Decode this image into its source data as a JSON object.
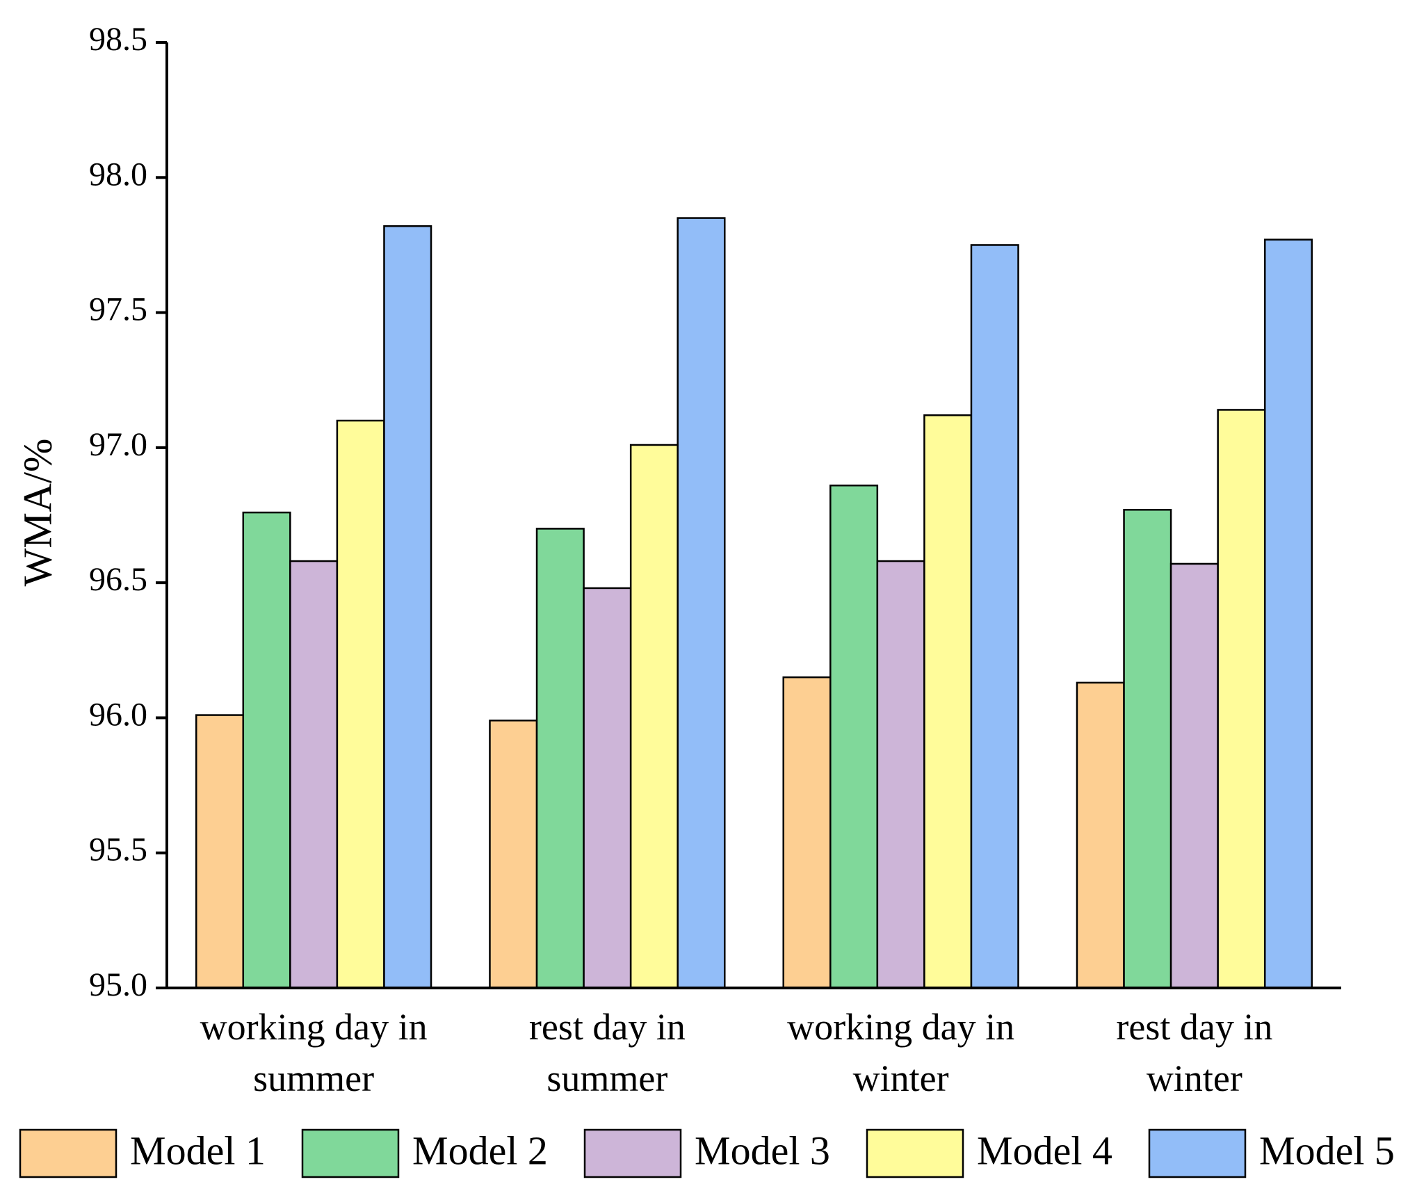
{
  "chart_data": {
    "type": "bar",
    "y_label": "WMA/%",
    "categories": [
      "working day in summer",
      "rest day in summer",
      "working day in winter",
      "rest day in winter"
    ],
    "series": [
      {
        "name": "Model 1",
        "color": "#fdcf92",
        "values": [
          96.01,
          95.99,
          96.15,
          96.13
        ]
      },
      {
        "name": "Model 2",
        "color": "#80d89a",
        "values": [
          96.76,
          96.7,
          96.86,
          96.77
        ]
      },
      {
        "name": "Model 3",
        "color": "#cdb5d8",
        "values": [
          96.58,
          96.48,
          96.58,
          96.57
        ]
      },
      {
        "name": "Model 4",
        "color": "#fffc9a",
        "values": [
          97.1,
          97.01,
          97.12,
          97.14
        ]
      },
      {
        "name": "Model 5",
        "color": "#92bdf8",
        "values": [
          97.82,
          97.85,
          97.75,
          97.77
        ]
      }
    ],
    "ylim": [
      95.0,
      98.5
    ],
    "yticks": [
      {
        "value": 95,
        "label": "95.0"
      },
      95.5,
      {
        "value": 96,
        "label": "96.0"
      },
      96.5,
      {
        "value": 97,
        "label": "97.0"
      },
      97.5,
      {
        "value": 98,
        "label": "98.0"
      },
      98.5
    ],
    "legend": "bottom"
  }
}
